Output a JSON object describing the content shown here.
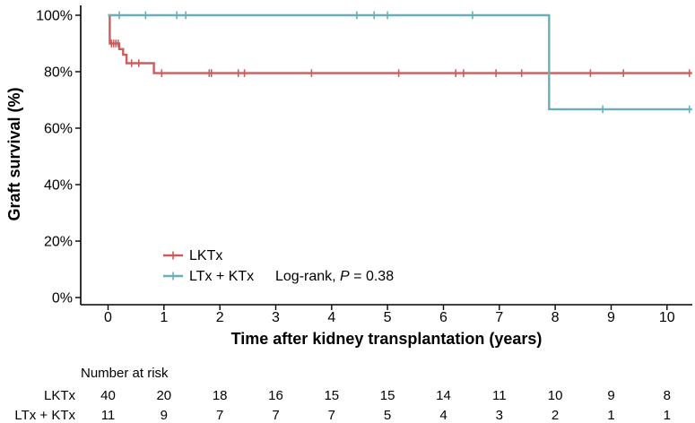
{
  "chart_data": {
    "type": "line",
    "subtype": "kaplan-meier-step",
    "title": "",
    "xlabel": "Time after kidney transplantation (years)",
    "ylabel": "Graft survival (%)",
    "xlim": [
      -0.45,
      10.45
    ],
    "ylim": [
      0,
      100
    ],
    "grid": "off",
    "x_ticks": [
      "0",
      "1",
      "2",
      "3",
      "4",
      "5",
      "6",
      "7",
      "8",
      "9",
      "10"
    ],
    "x_tick_values": [
      0,
      1,
      2,
      3,
      4,
      5,
      6,
      7,
      8,
      9,
      10
    ],
    "y_ticks": [
      "0%",
      "20%",
      "40%",
      "60%",
      "80%",
      "100%"
    ],
    "y_tick_values": [
      0,
      20,
      40,
      60,
      80,
      100
    ],
    "series": [
      {
        "name": "LKTx",
        "color": "#cb5d5a",
        "steps": [
          [
            0,
            100
          ],
          [
            0.03,
            90
          ],
          [
            0.2,
            88
          ],
          [
            0.27,
            86
          ],
          [
            0.33,
            83
          ],
          [
            0.82,
            79.5
          ],
          [
            10.45,
            79.5
          ]
        ],
        "censors": [
          [
            0.06,
            90
          ],
          [
            0.1,
            90
          ],
          [
            0.14,
            90
          ],
          [
            0.18,
            90
          ],
          [
            0.42,
            83
          ],
          [
            0.55,
            83
          ],
          [
            0.96,
            79.5
          ],
          [
            1.81,
            79.5
          ],
          [
            1.85,
            79.5
          ],
          [
            2.33,
            79.5
          ],
          [
            2.44,
            79.5
          ],
          [
            3.64,
            79.5
          ],
          [
            5.2,
            79.5
          ],
          [
            6.22,
            79.5
          ],
          [
            6.36,
            79.5
          ],
          [
            6.94,
            79.5
          ],
          [
            7.4,
            79.5
          ],
          [
            8.63,
            79.5
          ],
          [
            9.22,
            79.5
          ],
          [
            10.4,
            79.5
          ]
        ]
      },
      {
        "name": "LTx + KTx",
        "color": "#6aafb8",
        "steps": [
          [
            0,
            100
          ],
          [
            7.89,
            66.7
          ],
          [
            10.45,
            66.7
          ]
        ],
        "censors": [
          [
            0.2,
            100
          ],
          [
            0.67,
            100
          ],
          [
            1.23,
            100
          ],
          [
            1.39,
            100
          ],
          [
            4.45,
            100
          ],
          [
            4.76,
            100
          ],
          [
            5.0,
            100
          ],
          [
            6.52,
            100
          ],
          [
            8.85,
            66.7
          ],
          [
            10.4,
            66.7
          ]
        ]
      }
    ],
    "legend": {
      "position": "inside-bottom-left",
      "items": [
        "LKTx",
        "LTx + KTx"
      ]
    },
    "annotation": {
      "prefix": "Log-rank, ",
      "p": "P",
      "suffix": " = 0.38"
    },
    "risk_table": {
      "title": "Number at risk",
      "time_points": [
        0,
        1,
        2,
        3,
        4,
        5,
        6,
        7,
        8,
        9,
        10
      ],
      "rows": [
        {
          "name": "LKTx",
          "color": "#cb5d5a",
          "values": [
            "40",
            "20",
            "18",
            "16",
            "15",
            "15",
            "14",
            "11",
            "10",
            "9",
            "8"
          ]
        },
        {
          "name": "LTx + KTx",
          "color": "#6aafb8",
          "values": [
            "11",
            "9",
            "7",
            "7",
            "7",
            "5",
            "4",
            "3",
            "2",
            "1",
            "1"
          ]
        }
      ]
    }
  }
}
